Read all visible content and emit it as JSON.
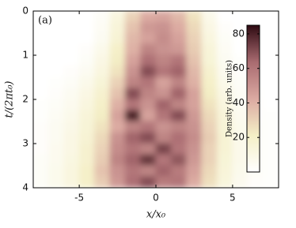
{
  "chart_data": {
    "type": "heatmap",
    "panel_label": "(a)",
    "x_label": "x/x₀",
    "y_label": "t/(2πt₀)",
    "colorbar_label": "Density (arb. units)",
    "xlim": [
      -8,
      8
    ],
    "ylim": [
      4,
      0
    ],
    "xticks": [
      -5,
      0,
      5
    ],
    "yticks": [
      0,
      1,
      2,
      3,
      4
    ],
    "zlim": [
      0,
      85
    ],
    "zticks": [
      20,
      40,
      60,
      80
    ],
    "colormap": [
      "#ffffff",
      "#f4efc6",
      "#dba9a1",
      "#a96b70",
      "#2e0a12"
    ],
    "x": [
      -7.5,
      -6.5,
      -5.5,
      -4.5,
      -3.5,
      -2.5,
      -1.5,
      -0.5,
      0.5,
      1.5,
      2.5,
      3.5,
      4.5,
      5.5,
      6.5,
      7.5
    ],
    "y": [
      0.125,
      0.375,
      0.625,
      0.875,
      1.125,
      1.375,
      1.625,
      1.875,
      2.125,
      2.375,
      2.625,
      2.875,
      3.125,
      3.375,
      3.625,
      3.875
    ],
    "z": [
      [
        0,
        0,
        0,
        0,
        3,
        12,
        30,
        42,
        44,
        38,
        25,
        8,
        0,
        0,
        0,
        0
      ],
      [
        0,
        0,
        0,
        0,
        4,
        14,
        35,
        48,
        50,
        42,
        28,
        10,
        2,
        0,
        0,
        0
      ],
      [
        0,
        0,
        0,
        0,
        5,
        16,
        38,
        45,
        52,
        45,
        30,
        12,
        3,
        0,
        0,
        0
      ],
      [
        0,
        0,
        0,
        2,
        8,
        20,
        40,
        55,
        50,
        48,
        32,
        14,
        4,
        0,
        0,
        0
      ],
      [
        0,
        0,
        0,
        3,
        10,
        22,
        45,
        62,
        55,
        60,
        35,
        15,
        5,
        1,
        0,
        0
      ],
      [
        0,
        0,
        2,
        5,
        12,
        25,
        50,
        70,
        60,
        65,
        38,
        18,
        6,
        2,
        0,
        0
      ],
      [
        0,
        1,
        3,
        8,
        15,
        30,
        55,
        60,
        45,
        55,
        40,
        20,
        8,
        3,
        0,
        0
      ],
      [
        0,
        2,
        5,
        10,
        18,
        35,
        70,
        55,
        50,
        65,
        45,
        22,
        10,
        4,
        1,
        0
      ],
      [
        1,
        3,
        6,
        12,
        20,
        40,
        60,
        50,
        65,
        55,
        45,
        25,
        12,
        5,
        2,
        0
      ],
      [
        1,
        4,
        8,
        14,
        22,
        45,
        80,
        45,
        60,
        70,
        48,
        28,
        14,
        6,
        2,
        1
      ],
      [
        2,
        5,
        9,
        15,
        25,
        42,
        55,
        60,
        50,
        55,
        50,
        30,
        15,
        7,
        3,
        1
      ],
      [
        2,
        5,
        10,
        16,
        28,
        50,
        65,
        70,
        55,
        62,
        52,
        32,
        16,
        8,
        3,
        1
      ],
      [
        2,
        6,
        10,
        18,
        30,
        52,
        60,
        55,
        72,
        60,
        50,
        30,
        16,
        8,
        3,
        1
      ],
      [
        3,
        6,
        11,
        18,
        32,
        55,
        65,
        75,
        60,
        68,
        48,
        30,
        15,
        8,
        3,
        1
      ],
      [
        3,
        7,
        12,
        20,
        35,
        50,
        60,
        55,
        65,
        58,
        45,
        28,
        14,
        7,
        3,
        1
      ],
      [
        3,
        7,
        12,
        20,
        32,
        48,
        62,
        70,
        58,
        60,
        42,
        26,
        13,
        6,
        2,
        1
      ]
    ]
  }
}
